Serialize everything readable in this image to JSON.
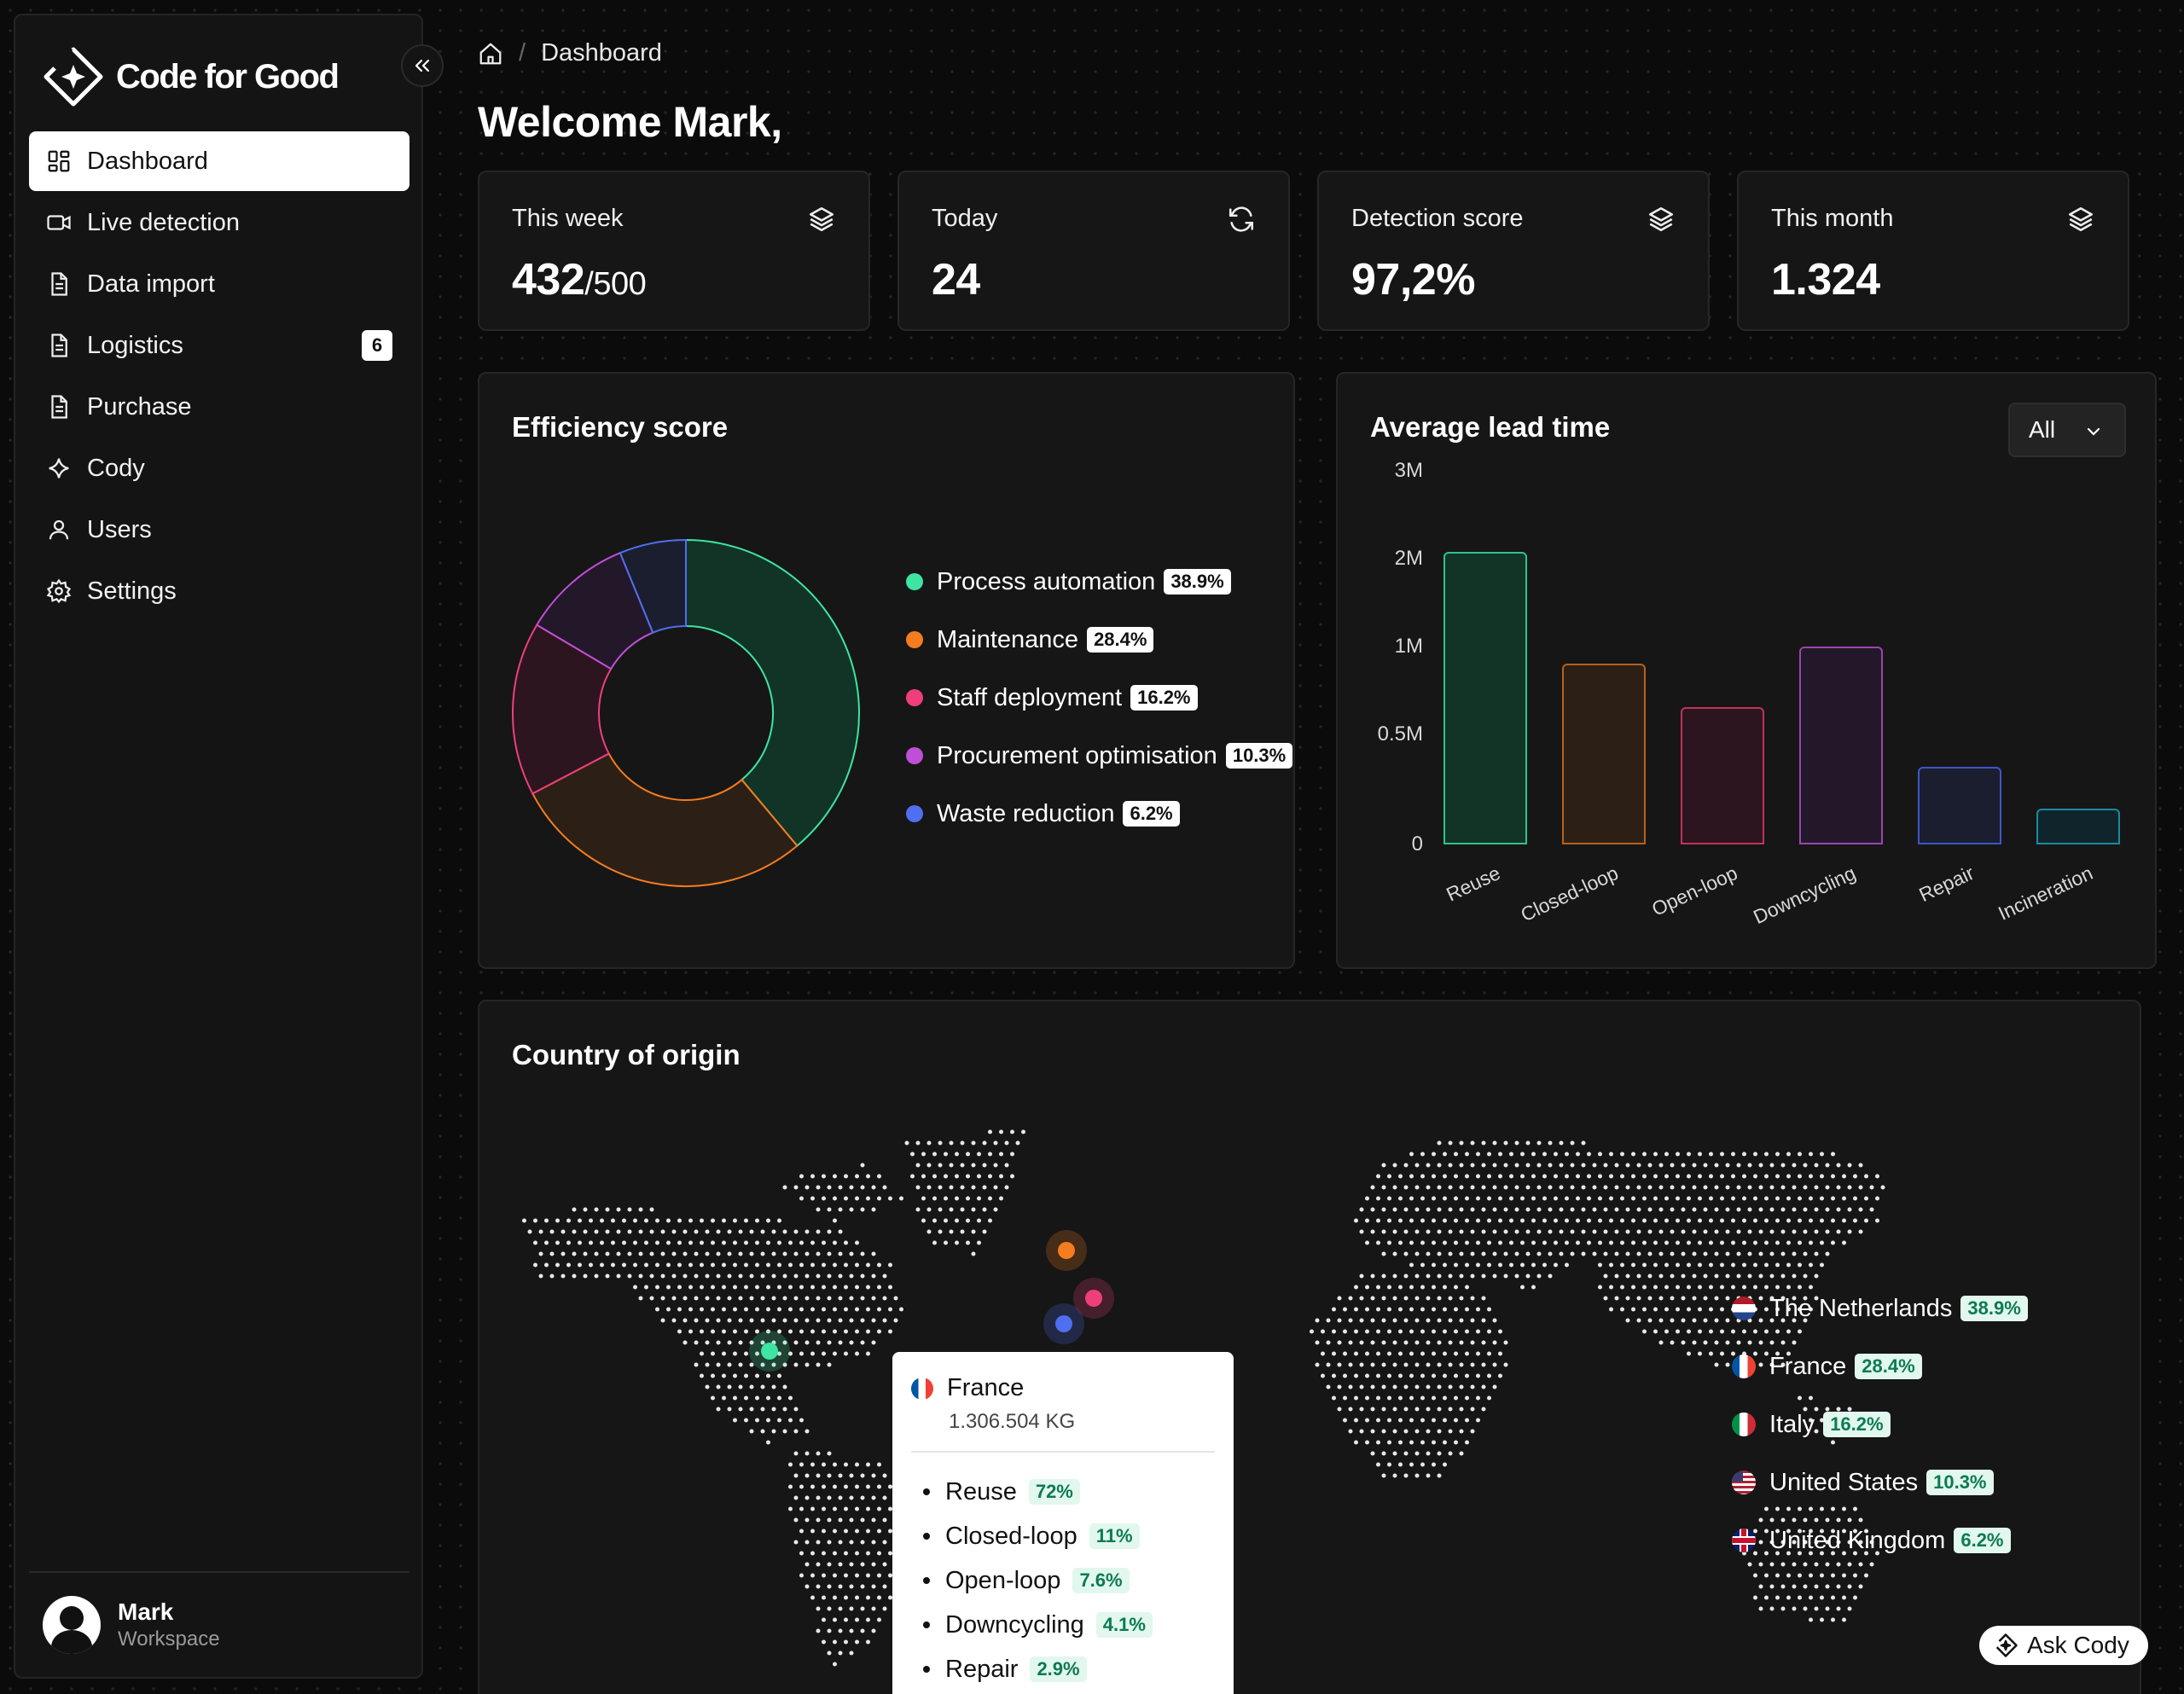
{
  "brand": {
    "name": "Code for Good"
  },
  "sidebar": {
    "items": [
      {
        "label": "Dashboard",
        "icon": "dashboard-icon",
        "active": true
      },
      {
        "label": "Live detection",
        "icon": "video-icon"
      },
      {
        "label": "Data import",
        "icon": "document-icon"
      },
      {
        "label": "Logistics",
        "icon": "document-icon",
        "badge": "6"
      },
      {
        "label": "Purchase",
        "icon": "document-icon"
      },
      {
        "label": "Cody",
        "icon": "sparkle-icon"
      },
      {
        "label": "Users",
        "icon": "user-icon"
      },
      {
        "label": "Settings",
        "icon": "gear-icon"
      }
    ],
    "user": {
      "name": "Mark",
      "workspace": "Workspace"
    }
  },
  "header": {
    "breadcrumb": "Dashboard",
    "title": "Welcome Mark,"
  },
  "stats": [
    {
      "label": "This week",
      "value": "432",
      "sub": "/500",
      "icon": "layers-icon"
    },
    {
      "label": "Today",
      "value": "24",
      "sub": "",
      "icon": "refresh-icon"
    },
    {
      "label": "Detection score",
      "value": "97,2%",
      "sub": "",
      "icon": "layers-icon"
    },
    {
      "label": "This month",
      "value": "1.324",
      "sub": "",
      "icon": "layers-icon"
    }
  ],
  "efficiency": {
    "title": "Efficiency score",
    "chart_data": {
      "type": "pie",
      "slices": [
        {
          "label": "Process automation",
          "value": 38.9,
          "pct": "38.9%",
          "color": "#3ee4a1",
          "fill": "#123427"
        },
        {
          "label": "Maintenance",
          "value": 28.4,
          "pct": "28.4%",
          "color": "#f57c1f",
          "fill": "#2c2016"
        },
        {
          "label": "Staff deployment",
          "value": 16.2,
          "pct": "16.2%",
          "color": "#ee3f7c",
          "fill": "#2d1520"
        },
        {
          "label": "Procurement optimisation",
          "value": 10.3,
          "pct": "10.3%",
          "color": "#c04fd8",
          "fill": "#231829"
        },
        {
          "label": "Waste reduction",
          "value": 6.2,
          "pct": "6.2%",
          "color": "#4f6ff0",
          "fill": "#1b1e2e"
        }
      ]
    }
  },
  "leadtime": {
    "title": "Average lead time",
    "filter": "All",
    "chart_data": {
      "type": "bar",
      "categories": [
        "Reuse",
        "Closed-loop",
        "Open-loop",
        "Downcycling",
        "Repair",
        "Incineration"
      ],
      "values": [
        2350000,
        1450000,
        1100000,
        1590000,
        620000,
        290000
      ],
      "yticks": [
        "3M",
        "2M",
        "1M",
        "0.5M",
        "0"
      ],
      "colors": [
        {
          "stroke": "#2fc28c",
          "fill": "#123427"
        },
        {
          "stroke": "#b8611d",
          "fill": "#2c2016"
        },
        {
          "stroke": "#c0335f",
          "fill": "#2d1520"
        },
        {
          "stroke": "#9a45b0",
          "fill": "#231829"
        },
        {
          "stroke": "#3e56c9",
          "fill": "#1b1e2e"
        },
        {
          "stroke": "#1b8aa3",
          "fill": "#10252b"
        }
      ]
    }
  },
  "country": {
    "title": "Country of origin",
    "legend": [
      {
        "name": "The Netherlands",
        "pct": "38.9%",
        "flag": "nl"
      },
      {
        "name": "France",
        "pct": "28.4%",
        "flag": "fr"
      },
      {
        "name": "Italy",
        "pct": "16.2%",
        "flag": "it"
      },
      {
        "name": "United States",
        "pct": "10.3%",
        "flag": "us"
      },
      {
        "name": "United Kingdom",
        "pct": "6.2%",
        "flag": "uk"
      }
    ],
    "tooltip": {
      "country": "France",
      "weight": "1.306.504 KG",
      "items": [
        {
          "label": "Reuse",
          "pct": "72%"
        },
        {
          "label": "Closed-loop",
          "pct": "11%"
        },
        {
          "label": "Open-loop",
          "pct": "7.6%"
        },
        {
          "label": "Downcycling",
          "pct": "4.1%"
        },
        {
          "label": "Repair",
          "pct": "2.9%"
        }
      ]
    },
    "markers": [
      {
        "color": "#3ee4a1"
      },
      {
        "color": "#f57c1f"
      },
      {
        "color": "#ee3f7c"
      },
      {
        "color": "#4f6ff0"
      }
    ]
  },
  "ask": {
    "label": "Ask Cody"
  }
}
